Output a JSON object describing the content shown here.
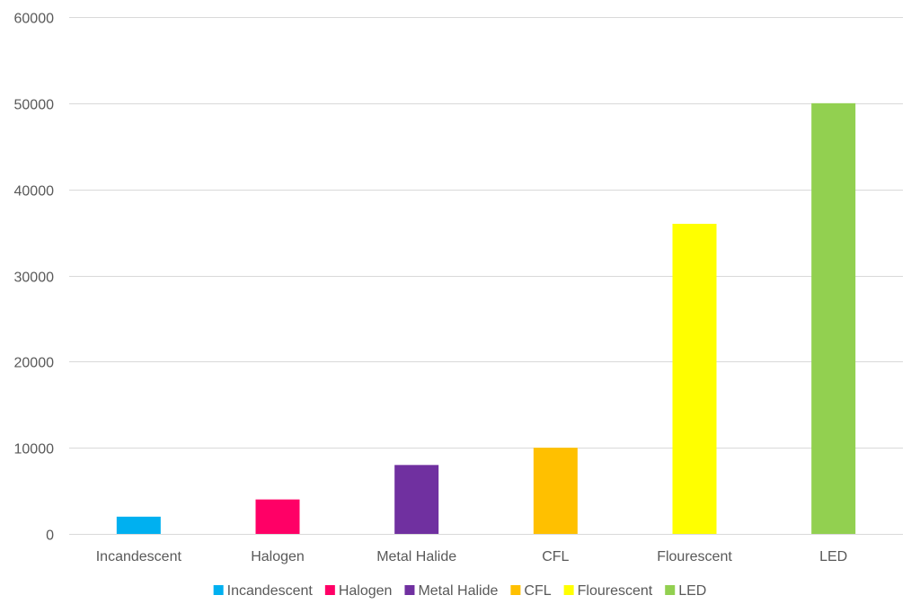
{
  "chart_data": {
    "type": "bar",
    "title": "",
    "xlabel": "",
    "ylabel": "",
    "categories": [
      "Incandescent",
      "Halogen",
      "Metal Halide",
      "CFL",
      "Flourescent",
      "LED"
    ],
    "values": [
      2000,
      4000,
      8000,
      10000,
      36000,
      50000
    ],
    "colors": [
      "#00B0F0",
      "#FF0066",
      "#7030A0",
      "#FFC000",
      "#FFFF00",
      "#92D050"
    ],
    "ylim": [
      0,
      60000
    ],
    "yticks": [
      "0",
      "10000",
      "20000",
      "30000",
      "40000",
      "50000",
      "60000"
    ],
    "grid": true,
    "legend_position": "bottom",
    "legend": [
      "Incandescent",
      "Halogen",
      "Metal Halide",
      "CFL",
      "Flourescent",
      "LED"
    ]
  }
}
